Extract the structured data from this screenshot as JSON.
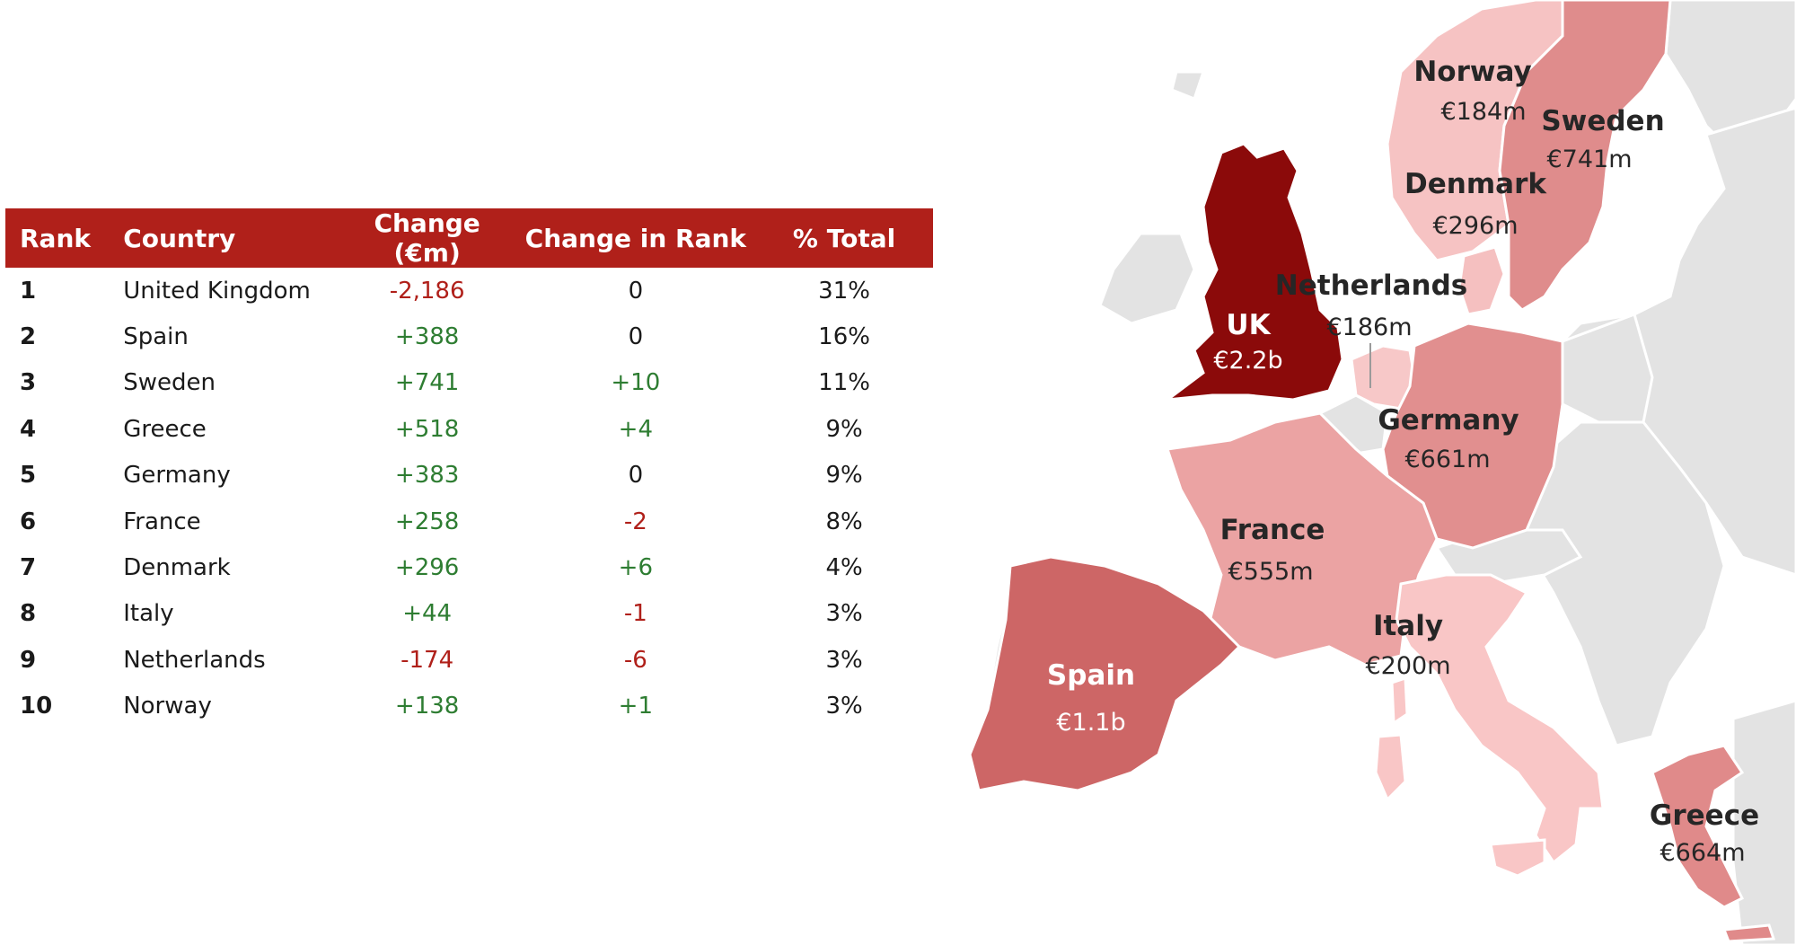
{
  "table": {
    "headers": {
      "rank": "Rank",
      "country": "Country",
      "change": "Change (€m)",
      "change_rank": "Change in Rank",
      "pct_total": "% Total"
    },
    "rows": [
      {
        "rank": "1",
        "country": "United Kingdom",
        "change": "-2,186",
        "change_rank": "0",
        "pct": "31%"
      },
      {
        "rank": "2",
        "country": "Spain",
        "change": "+388",
        "change_rank": "0",
        "pct": "16%"
      },
      {
        "rank": "3",
        "country": "Sweden",
        "change": "+741",
        "change_rank": "+10",
        "pct": "11%"
      },
      {
        "rank": "4",
        "country": "Greece",
        "change": "+518",
        "change_rank": "+4",
        "pct": "9%"
      },
      {
        "rank": "5",
        "country": "Germany",
        "change": "+383",
        "change_rank": "0",
        "pct": "9%"
      },
      {
        "rank": "6",
        "country": "France",
        "change": "+258",
        "change_rank": "-2",
        "pct": "8%"
      },
      {
        "rank": "7",
        "country": "Denmark",
        "change": "+296",
        "change_rank": "+6",
        "pct": "4%"
      },
      {
        "rank": "8",
        "country": "Italy",
        "change": "+44",
        "change_rank": "-1",
        "pct": "3%"
      },
      {
        "rank": "9",
        "country": "Netherlands",
        "change": "-174",
        "change_rank": "-6",
        "pct": "3%"
      },
      {
        "rank": "10",
        "country": "Norway",
        "change": "+138",
        "change_rank": "+1",
        "pct": "3%"
      }
    ]
  },
  "map": {
    "labels": [
      {
        "name": "Norway",
        "value": "€184m"
      },
      {
        "name": "Sweden",
        "value": "€741m"
      },
      {
        "name": "Denmark",
        "value": "€296m"
      },
      {
        "name": "Netherlands",
        "value": "€186m"
      },
      {
        "name": "UK",
        "value": "€2.2b"
      },
      {
        "name": "Germany",
        "value": "€661m"
      },
      {
        "name": "France",
        "value": "€555m"
      },
      {
        "name": "Italy",
        "value": "€200m"
      },
      {
        "name": "Spain",
        "value": "€1.1b"
      },
      {
        "name": "Greece",
        "value": "€664m"
      }
    ]
  },
  "colors": {
    "header_bg": "#b0201a",
    "positive": "#2e7d32",
    "negative": "#b0201a",
    "land_other": "#e3e3e3",
    "uk": "#8b0a0a",
    "spain": "#cd6666",
    "sweden": "#df8c8c",
    "greece": "#e08a8a",
    "germany": "#e18f8f",
    "france": "#eba3a3",
    "norway": "#f6c3c3",
    "denmark": "#f5c0c0",
    "italy": "#f9c6c6",
    "netherlands": "#f7c8c8"
  }
}
